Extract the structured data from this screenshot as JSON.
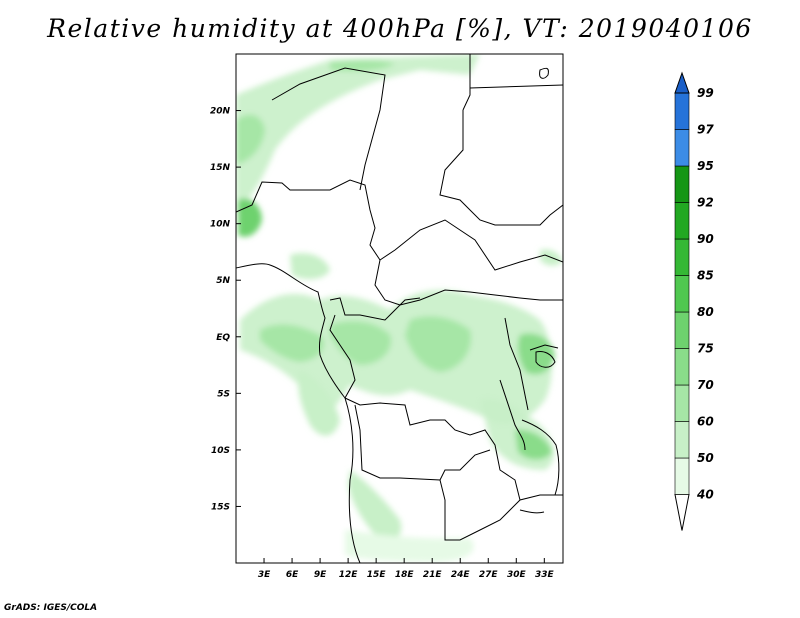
{
  "title": "Relative humidity at 400hPa [%], VT: 2019040106",
  "credit": "GrADS: IGES/COLA",
  "map": {
    "lon_range": [
      0,
      35
    ],
    "lat_range": [
      -20,
      25
    ],
    "lon_ticks": [
      {
        "value": 3,
        "label": "3E"
      },
      {
        "value": 6,
        "label": "6E"
      },
      {
        "value": 9,
        "label": "9E"
      },
      {
        "value": 12,
        "label": "12E"
      },
      {
        "value": 15,
        "label": "15E"
      },
      {
        "value": 18,
        "label": "18E"
      },
      {
        "value": 21,
        "label": "21E"
      },
      {
        "value": 24,
        "label": "24E"
      },
      {
        "value": 27,
        "label": "27E"
      },
      {
        "value": 30,
        "label": "30E"
      },
      {
        "value": 33,
        "label": "33E"
      }
    ],
    "lat_ticks": [
      {
        "value": 20,
        "label": "20N"
      },
      {
        "value": 15,
        "label": "15N"
      },
      {
        "value": 10,
        "label": "10N"
      },
      {
        "value": 5,
        "label": "5N"
      },
      {
        "value": 0,
        "label": "EQ"
      },
      {
        "value": -5,
        "label": "5S"
      },
      {
        "value": -10,
        "label": "10S"
      },
      {
        "value": -15,
        "label": "15S"
      }
    ]
  },
  "colorbar": {
    "levels": [
      "40",
      "50",
      "60",
      "70",
      "75",
      "80",
      "85",
      "90",
      "92",
      "95",
      "97",
      "99"
    ],
    "colors": [
      "#ffffff",
      "#e6fae6",
      "#c8f0c8",
      "#a6e6a6",
      "#8adc8a",
      "#6ed26e",
      "#50c850",
      "#35b835",
      "#22a822",
      "#159615",
      "#3c8ce6",
      "#2673d9",
      "#1a5fc8"
    ]
  }
}
